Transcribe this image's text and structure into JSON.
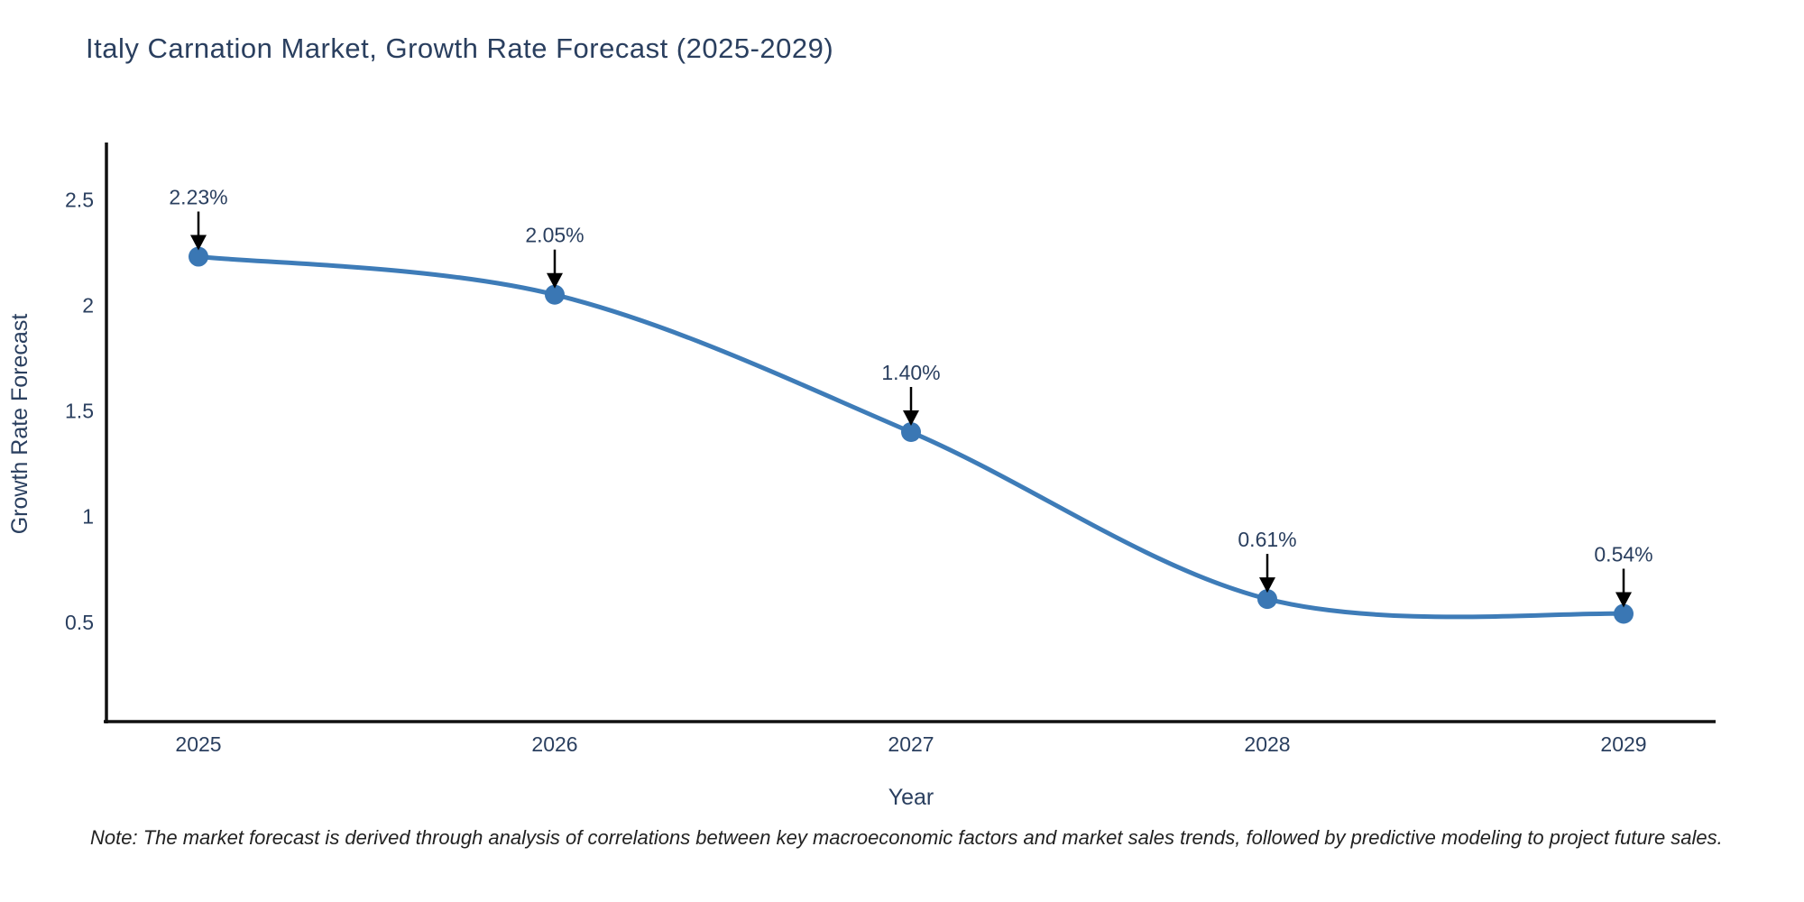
{
  "title": "Italy Carnation Market, Growth Rate Forecast (2025-2029)",
  "note": "Note: The market forecast is derived through analysis of correlations between key macroeconomic factors and market sales trends, followed by predictive modeling to project future sales.",
  "chart_data": {
    "type": "line",
    "line_shape": "spline",
    "title": "Italy Carnation Market, Growth Rate Forecast (2025-2029)",
    "categories": [
      "2025",
      "2026",
      "2027",
      "2028",
      "2029"
    ],
    "series": [
      {
        "name": "Growth Rate Forecast",
        "values": [
          2.23,
          2.05,
          1.4,
          0.61,
          0.54
        ],
        "point_labels": [
          "2.23%",
          "2.05%",
          "1.40%",
          "0.61%",
          "0.54%"
        ]
      }
    ],
    "xlabel": "Year",
    "ylabel": "Growth Rate Forecast",
    "ylim": [
      0.03,
      2.77
    ],
    "yticks": [
      0.5,
      1,
      1.5,
      2,
      2.5
    ],
    "ytick_labels": [
      "0.5",
      "1",
      "1.5",
      "2",
      "2.5"
    ],
    "grid": false,
    "legend_visible": false,
    "annotations_style": "value-label-with-down-arrow",
    "colors": {
      "line": "#3e7cb8",
      "marker": "#3a77b4",
      "axis": "#111111",
      "tick_text": "#2a3f5f",
      "title_text": "#2a3f5f",
      "annotation_text": "#2a3f5f",
      "arrow": "#000000",
      "note_text": "#222222",
      "background": "#ffffff"
    }
  }
}
